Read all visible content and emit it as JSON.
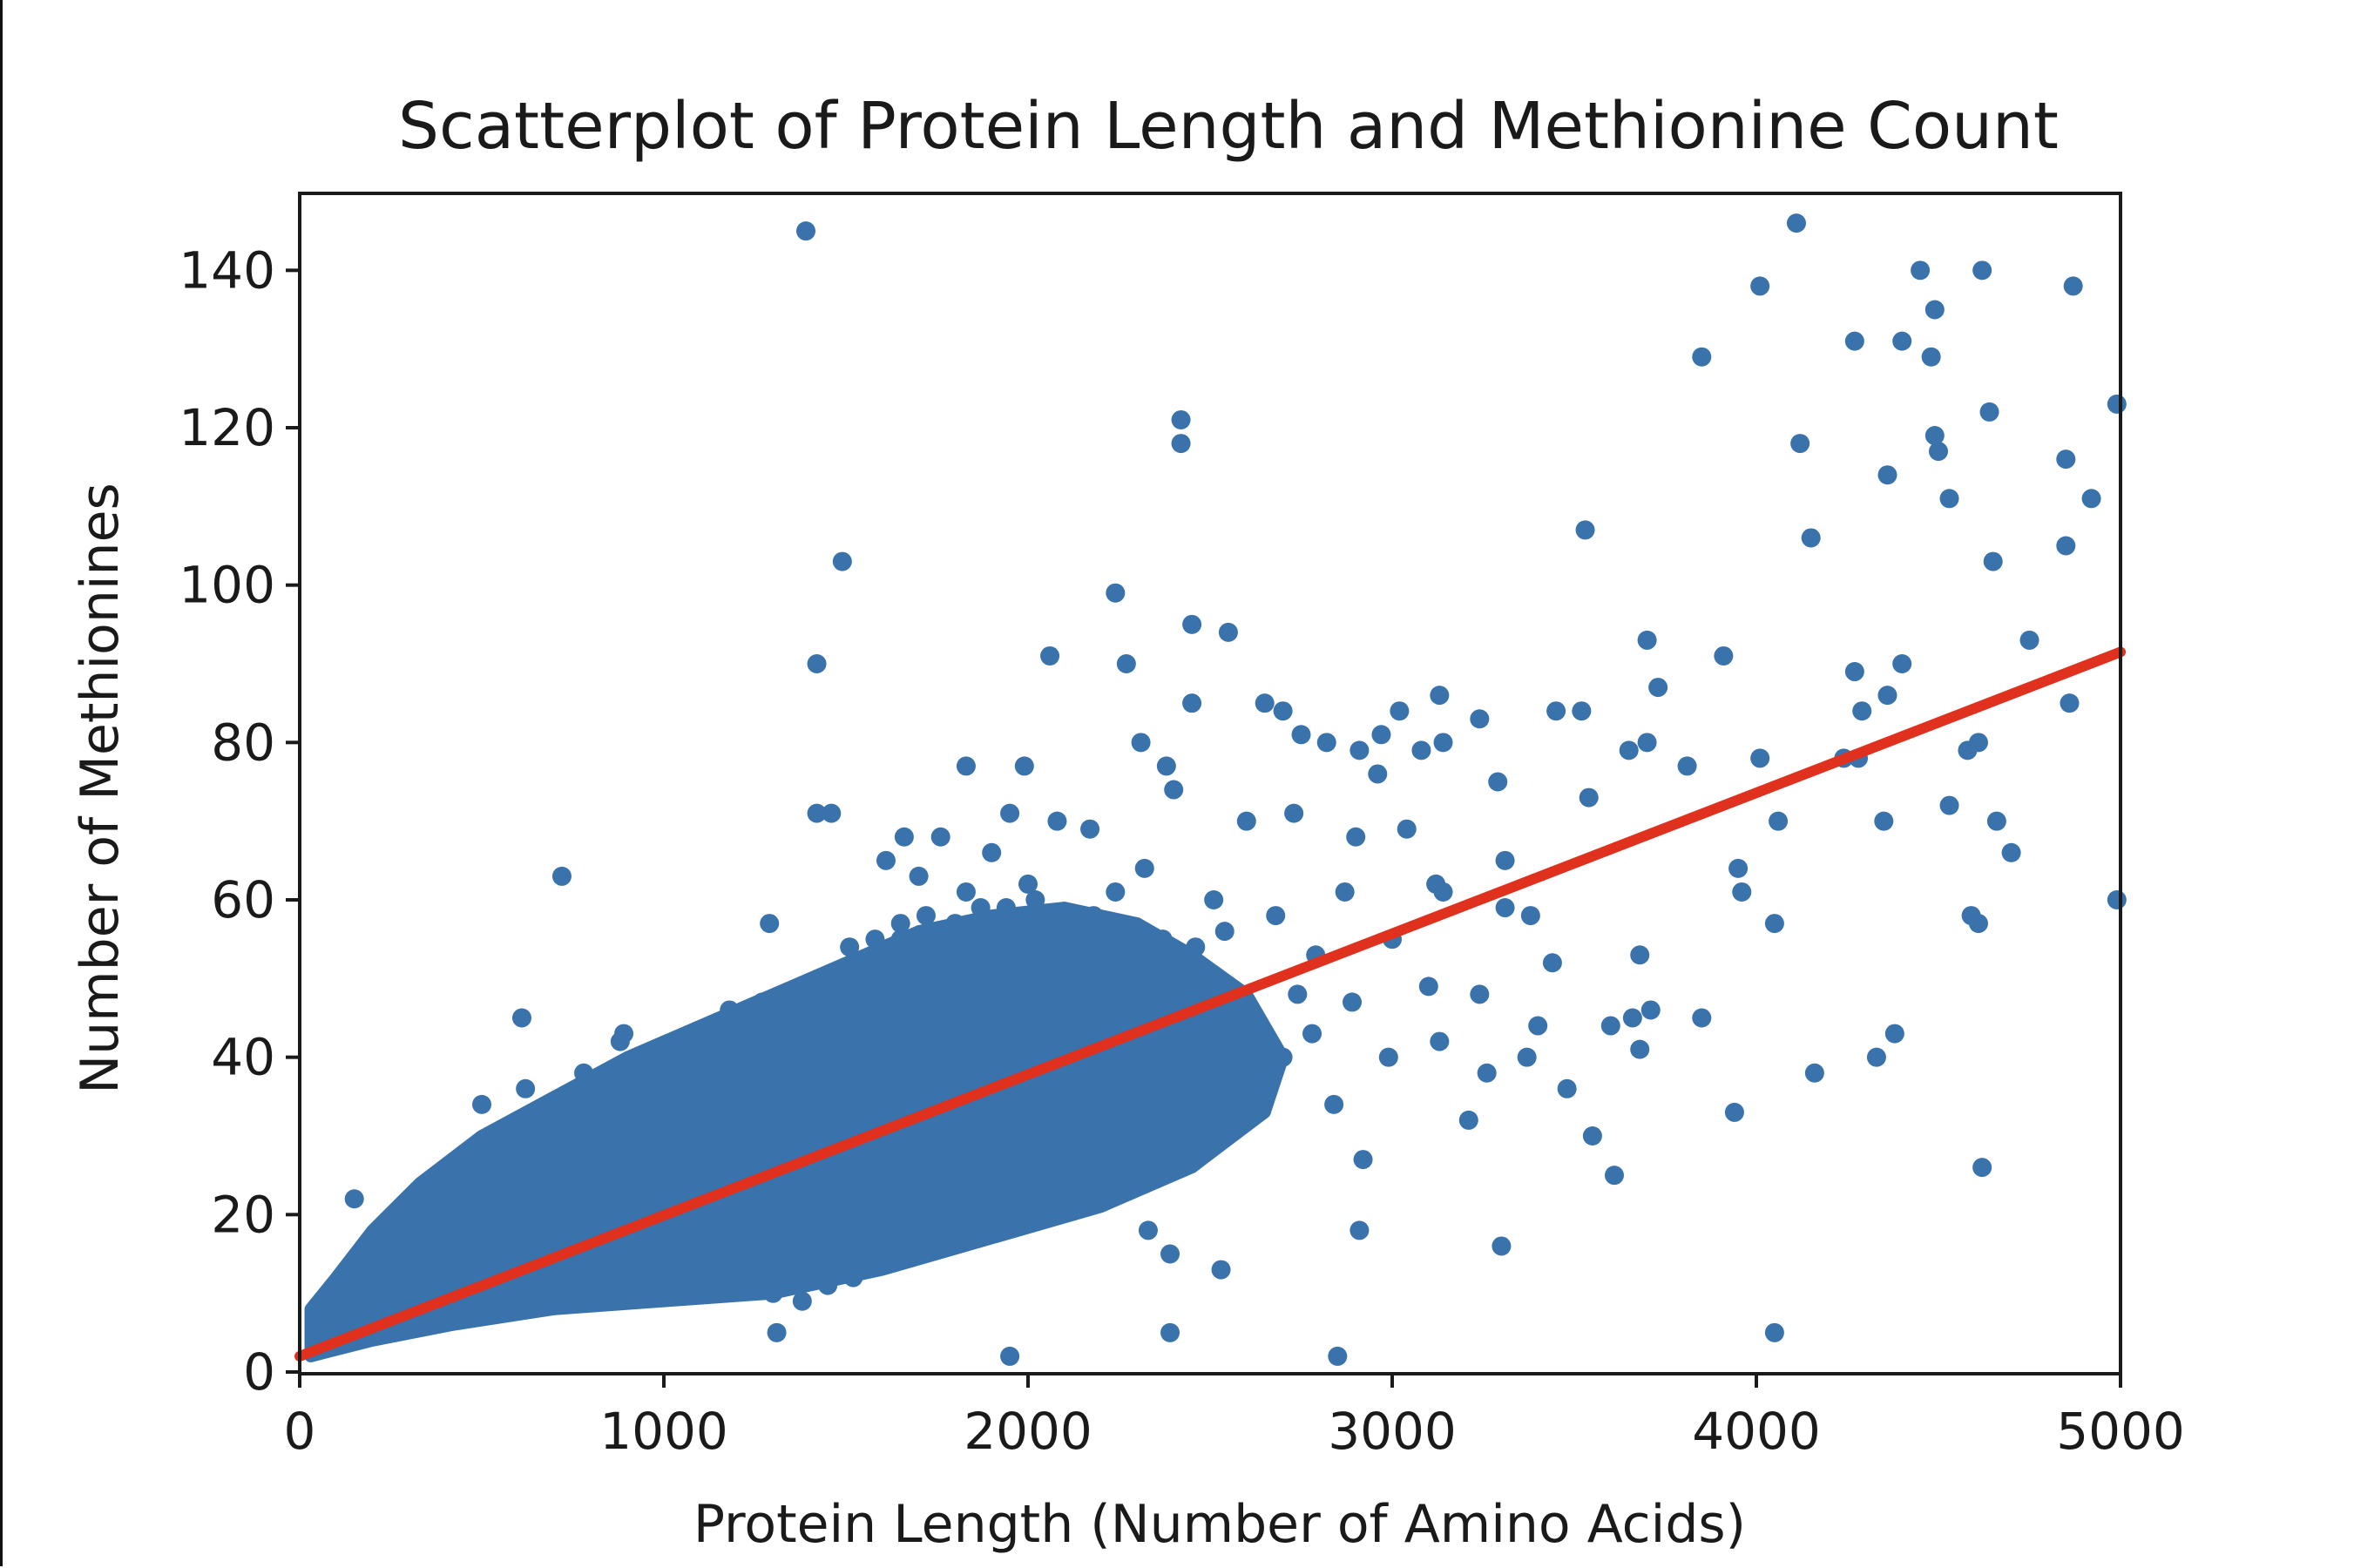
{
  "chart_data": {
    "type": "scatter",
    "title": "Scatterplot of Protein Length and Methionine Count",
    "xlabel": "Protein Length (Number of Amino Acids)",
    "ylabel": "Number of Methionines",
    "xlim": [
      0,
      5000
    ],
    "ylim": [
      0,
      150
    ],
    "x_ticks": [
      0,
      1000,
      2000,
      3000,
      4000,
      5000
    ],
    "y_ticks": [
      0,
      20,
      40,
      60,
      80,
      100,
      120,
      140
    ],
    "x_tick_labels": [
      "0",
      "1000",
      "2000",
      "3000",
      "4000",
      "5000"
    ],
    "y_tick_labels": [
      "0",
      "20",
      "40",
      "60",
      "80",
      "100",
      "120",
      "140"
    ],
    "grid": false,
    "legend": "none",
    "colors": {
      "points": "#3a72ab",
      "fit_line": "#e0301e",
      "axes": "#1a1a1a"
    },
    "fit_line": {
      "x": [
        0,
        5000
      ],
      "y": [
        2,
        91.5
      ]
    },
    "series": [
      {
        "points": [
          [
            1390,
            145
          ],
          [
            4110,
            146
          ],
          [
            4010,
            138
          ],
          [
            4450,
            140
          ],
          [
            4620,
            140
          ],
          [
            4870,
            138
          ],
          [
            3850,
            129
          ],
          [
            4270,
            131
          ],
          [
            4400,
            131
          ],
          [
            4480,
            129
          ],
          [
            4490,
            135
          ],
          [
            2420,
            121
          ],
          [
            2420,
            118
          ],
          [
            4120,
            118
          ],
          [
            4640,
            122
          ],
          [
            4490,
            119
          ],
          [
            4500,
            117
          ],
          [
            4990,
            123
          ],
          [
            4360,
            114
          ],
          [
            4530,
            111
          ],
          [
            4850,
            116
          ],
          [
            4920,
            111
          ],
          [
            1490,
            103
          ],
          [
            3530,
            107
          ],
          [
            4150,
            106
          ],
          [
            4650,
            103
          ],
          [
            4850,
            105
          ],
          [
            2240,
            99
          ],
          [
            2450,
            95
          ],
          [
            2550,
            94
          ],
          [
            1420,
            90
          ],
          [
            2060,
            91
          ],
          [
            2270,
            90
          ],
          [
            3700,
            93
          ],
          [
            3910,
            91
          ],
          [
            4270,
            89
          ],
          [
            4400,
            90
          ],
          [
            4750,
            93
          ],
          [
            2450,
            85
          ],
          [
            2650,
            85
          ],
          [
            2700,
            84
          ],
          [
            3020,
            84
          ],
          [
            3130,
            86
          ],
          [
            3240,
            83
          ],
          [
            3450,
            84
          ],
          [
            3520,
            84
          ],
          [
            3730,
            87
          ],
          [
            4290,
            84
          ],
          [
            4360,
            86
          ],
          [
            4860,
            85
          ],
          [
            2750,
            81
          ],
          [
            2820,
            80
          ],
          [
            2910,
            79
          ],
          [
            2970,
            81
          ],
          [
            3140,
            80
          ],
          [
            3700,
            80
          ],
          [
            3650,
            79
          ],
          [
            4580,
            79
          ],
          [
            4610,
            80
          ],
          [
            1830,
            77
          ],
          [
            1990,
            77
          ],
          [
            2310,
            80
          ],
          [
            2380,
            77
          ],
          [
            2960,
            76
          ],
          [
            3080,
            79
          ],
          [
            3290,
            75
          ],
          [
            3810,
            77
          ],
          [
            4010,
            78
          ],
          [
            4280,
            78
          ],
          [
            4240,
            78
          ],
          [
            1420,
            71
          ],
          [
            1460,
            71
          ],
          [
            1660,
            68
          ],
          [
            1760,
            68
          ],
          [
            1950,
            71
          ],
          [
            2080,
            70
          ],
          [
            2170,
            69
          ],
          [
            2400,
            74
          ],
          [
            2600,
            70
          ],
          [
            2730,
            71
          ],
          [
            2900,
            68
          ],
          [
            3040,
            69
          ],
          [
            3310,
            65
          ],
          [
            3540,
            73
          ],
          [
            4060,
            70
          ],
          [
            4350,
            70
          ],
          [
            4530,
            72
          ],
          [
            4660,
            70
          ],
          [
            4700,
            66
          ],
          [
            720,
            63
          ],
          [
            1610,
            65
          ],
          [
            1700,
            63
          ],
          [
            1830,
            61
          ],
          [
            1900,
            66
          ],
          [
            2000,
            62
          ],
          [
            2240,
            61
          ],
          [
            2320,
            64
          ],
          [
            2510,
            60
          ],
          [
            2680,
            58
          ],
          [
            2870,
            61
          ],
          [
            3140,
            61
          ],
          [
            3310,
            59
          ],
          [
            3380,
            58
          ],
          [
            3960,
            61
          ],
          [
            3950,
            64
          ],
          [
            4050,
            57
          ],
          [
            4590,
            58
          ],
          [
            4610,
            57
          ],
          [
            4990,
            60
          ],
          [
            3120,
            62
          ],
          [
            1290,
            57
          ],
          [
            1650,
            55
          ],
          [
            2200,
            55
          ],
          [
            2440,
            52
          ],
          [
            2790,
            53
          ],
          [
            3000,
            55
          ],
          [
            3440,
            52
          ],
          [
            3680,
            53
          ],
          [
            610,
            45
          ],
          [
            890,
            43
          ],
          [
            1420,
            45
          ],
          [
            2030,
            46
          ],
          [
            2560,
            47
          ],
          [
            2740,
            48
          ],
          [
            2890,
            47
          ],
          [
            3100,
            49
          ],
          [
            3240,
            48
          ],
          [
            3400,
            44
          ],
          [
            3600,
            44
          ],
          [
            3660,
            45
          ],
          [
            3710,
            46
          ],
          [
            3850,
            45
          ],
          [
            2990,
            40
          ],
          [
            3130,
            42
          ],
          [
            3260,
            38
          ],
          [
            3370,
            40
          ],
          [
            3680,
            41
          ],
          [
            4380,
            43
          ],
          [
            4160,
            38
          ],
          [
            4330,
            40
          ],
          [
            2840,
            34
          ],
          [
            3210,
            32
          ],
          [
            3480,
            36
          ],
          [
            3940,
            33
          ],
          [
            3550,
            30
          ],
          [
            3610,
            25
          ],
          [
            2920,
            27
          ],
          [
            4620,
            26
          ],
          [
            2330,
            18
          ],
          [
            2910,
            18
          ],
          [
            3300,
            16
          ],
          [
            2390,
            15
          ],
          [
            2530,
            13
          ],
          [
            2390,
            5
          ],
          [
            2850,
            2
          ],
          [
            1950,
            2
          ],
          [
            4050,
            5
          ],
          [
            1310,
            5
          ],
          [
            150,
            22
          ],
          [
            500,
            34
          ],
          [
            540,
            30
          ],
          [
            620,
            36
          ],
          [
            700,
            33
          ],
          [
            780,
            38
          ],
          [
            880,
            42
          ],
          [
            950,
            40
          ],
          [
            1030,
            41
          ],
          [
            1100,
            43
          ],
          [
            1180,
            46
          ],
          [
            1270,
            47
          ],
          [
            1340,
            48
          ],
          [
            1430,
            50
          ],
          [
            1510,
            54
          ],
          [
            1580,
            55
          ],
          [
            1650,
            57
          ],
          [
            1720,
            58
          ],
          [
            1800,
            57
          ],
          [
            1870,
            59
          ],
          [
            1940,
            59
          ],
          [
            2020,
            60
          ],
          [
            2100,
            56
          ],
          [
            2180,
            58
          ],
          [
            2280,
            56
          ],
          [
            2370,
            55
          ],
          [
            2460,
            54
          ],
          [
            2540,
            56
          ],
          [
            1300,
            10
          ],
          [
            1380,
            9
          ],
          [
            1450,
            11
          ],
          [
            1520,
            12
          ],
          [
            1610,
            14
          ],
          [
            1700,
            15
          ],
          [
            1780,
            17
          ],
          [
            1860,
            19
          ],
          [
            1940,
            21
          ],
          [
            2020,
            22
          ],
          [
            2100,
            24
          ],
          [
            2170,
            25
          ],
          [
            2250,
            27
          ],
          [
            2330,
            28
          ],
          [
            2410,
            30
          ],
          [
            2490,
            31
          ],
          [
            2560,
            34
          ],
          [
            2640,
            36
          ],
          [
            2700,
            40
          ],
          [
            2780,
            43
          ]
        ]
      }
    ],
    "dense_region": [
      [
        30,
        2
      ],
      [
        200,
        4
      ],
      [
        420,
        6
      ],
      [
        700,
        8
      ],
      [
        1000,
        9
      ],
      [
        1300,
        10
      ],
      [
        1600,
        13
      ],
      [
        1900,
        17
      ],
      [
        2200,
        21
      ],
      [
        2450,
        26
      ],
      [
        2650,
        33
      ],
      [
        2700,
        40
      ],
      [
        2600,
        48
      ],
      [
        2450,
        53
      ],
      [
        2300,
        57
      ],
      [
        2100,
        59
      ],
      [
        1900,
        58
      ],
      [
        1700,
        56
      ],
      [
        1500,
        52
      ],
      [
        1300,
        48
      ],
      [
        1100,
        44
      ],
      [
        900,
        40
      ],
      [
        700,
        35
      ],
      [
        500,
        30
      ],
      [
        330,
        24
      ],
      [
        200,
        18
      ],
      [
        100,
        12
      ],
      [
        30,
        8
      ]
    ]
  }
}
